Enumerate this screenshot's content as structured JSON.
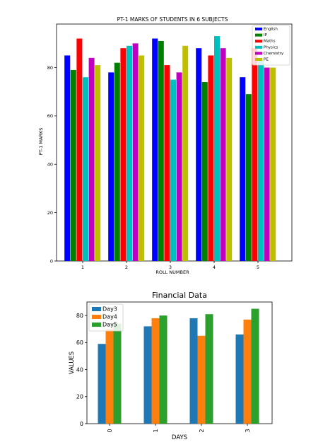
{
  "chart_data": [
    {
      "type": "bar",
      "title": "PT-1 MARKS OF STUDENTS IN 6 SUBJECTS",
      "xlabel": "ROLL NUMBER",
      "ylabel": "PT-1 MARKS",
      "categories": [
        "1",
        "2",
        "3",
        "4",
        "5"
      ],
      "ylim": [
        0,
        98
      ],
      "yticks": [
        0,
        20,
        40,
        60,
        80
      ],
      "grid": false,
      "legend_position": "top-right",
      "series": [
        {
          "name": "English",
          "color": "#0000ff",
          "values": [
            85,
            78,
            92,
            88,
            76
          ]
        },
        {
          "name": "IP",
          "color": "#008000",
          "values": [
            79,
            82,
            91,
            74,
            69
          ]
        },
        {
          "name": "Maths",
          "color": "#ff0000",
          "values": [
            92,
            88,
            81,
            85,
            88
          ]
        },
        {
          "name": "Physics",
          "color": "#00bfbf",
          "values": [
            76,
            89,
            75,
            93,
            84
          ]
        },
        {
          "name": "Chemistry",
          "color": "#bf00bf",
          "values": [
            84,
            90,
            78,
            88,
            80
          ]
        },
        {
          "name": "PE",
          "color": "#bfbf00",
          "values": [
            81,
            85,
            89,
            84,
            80
          ]
        }
      ]
    },
    {
      "type": "bar",
      "title": "Financial Data",
      "xlabel": "DAYS",
      "ylabel": "VALUES",
      "categories": [
        "0",
        "1",
        "2",
        "3"
      ],
      "ylim": [
        0,
        90
      ],
      "yticks": [
        0,
        20,
        40,
        60,
        80
      ],
      "grid": false,
      "legend_position": "top-left",
      "series": [
        {
          "name": "Day3",
          "color": "#1f77b4",
          "values": [
            59,
            72,
            78,
            66
          ]
        },
        {
          "name": "Day4",
          "color": "#ff7f0e",
          "values": [
            70,
            78,
            65,
            77
          ]
        },
        {
          "name": "Day5",
          "color": "#2ca02c",
          "values": [
            74,
            80,
            81,
            85
          ]
        }
      ]
    }
  ]
}
